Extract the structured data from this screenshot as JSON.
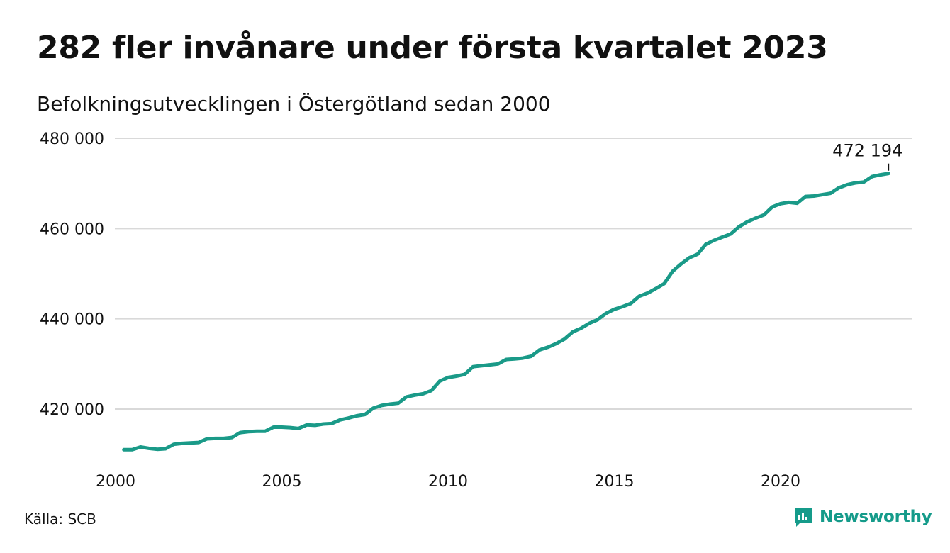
{
  "title": "282 fler invånare under första kvartalet 2023",
  "subtitle": "Befolkningsutvecklingen i Östergötland sedan 2000",
  "source": "Källa: SCB",
  "brand": {
    "name": "Newsworthy",
    "icon": "newsworthy-logo-icon",
    "color": "#159b8a"
  },
  "chart_data": {
    "type": "line",
    "color": "#1a9a88",
    "grid": true,
    "xlim": [
      2000,
      2023.25
    ],
    "ylim": [
      409000,
      480000
    ],
    "x_ticks": [
      {
        "value": 2000,
        "label": "2000"
      },
      {
        "value": 2005,
        "label": "2005"
      },
      {
        "value": 2010,
        "label": "2010"
      },
      {
        "value": 2015,
        "label": "2015"
      },
      {
        "value": 2020,
        "label": "2020"
      }
    ],
    "y_ticks": [
      {
        "value": 420000,
        "label": "420 000"
      },
      {
        "value": 440000,
        "label": "440 000"
      },
      {
        "value": 460000,
        "label": "460 000"
      },
      {
        "value": 480000,
        "label": "480 000"
      }
    ],
    "series": [
      {
        "x": [
          2000.25,
          2000.5,
          2000.75,
          2001,
          2001.25,
          2001.5,
          2001.75,
          2002,
          2002.25,
          2002.5,
          2002.75,
          2003,
          2003.25,
          2003.5,
          2003.75,
          2004,
          2004.25,
          2004.5,
          2004.75,
          2005,
          2005.25,
          2005.5,
          2005.75,
          2006,
          2006.25,
          2006.5,
          2006.75,
          2007,
          2007.25,
          2007.5,
          2007.75,
          2008,
          2008.25,
          2008.5,
          2008.75,
          2009,
          2009.25,
          2009.5,
          2009.75,
          2010,
          2010.25,
          2010.5,
          2010.75,
          2011,
          2011.25,
          2011.5,
          2011.75,
          2012,
          2012.25,
          2012.5,
          2012.75,
          2013,
          2013.25,
          2013.5,
          2013.75,
          2014,
          2014.25,
          2014.5,
          2014.75,
          2015,
          2015.25,
          2015.5,
          2015.75,
          2016,
          2016.25,
          2016.5,
          2016.75,
          2017,
          2017.25,
          2017.5,
          2017.75,
          2018,
          2018.25,
          2018.5,
          2018.75,
          2019,
          2019.25,
          2019.5,
          2019.75,
          2020,
          2020.25,
          2020.5,
          2020.75,
          2021,
          2021.25,
          2021.5,
          2021.75,
          2022,
          2022.25,
          2022.5,
          2022.75,
          2023,
          2023.25
        ],
        "values": [
          411000,
          411000,
          411600,
          411300,
          411100,
          411200,
          412200,
          412400,
          412500,
          412600,
          413400,
          413500,
          413500,
          413700,
          414800,
          415000,
          415100,
          415100,
          416000,
          416000,
          415900,
          415700,
          416500,
          416400,
          416700,
          416800,
          417600,
          418000,
          418500,
          418800,
          420200,
          420800,
          421100,
          421300,
          422700,
          423100,
          423400,
          424100,
          426200,
          427000,
          427300,
          427700,
          429400,
          429600,
          429800,
          430000,
          431000,
          431100,
          431300,
          431700,
          433100,
          433700,
          434500,
          435500,
          437100,
          437900,
          439000,
          439800,
          441200,
          442100,
          442700,
          443400,
          445000,
          445700,
          446700,
          447800,
          450500,
          452100,
          453500,
          454300,
          456500,
          457400,
          458100,
          458800,
          460400,
          461500,
          462300,
          463000,
          464800,
          465500,
          465800,
          465600,
          467100,
          467200,
          467500,
          467800,
          469000,
          469700,
          470100,
          470300,
          471500,
          471900,
          472194
        ]
      }
    ],
    "annotation": {
      "label": "472 194",
      "x": 2023.25,
      "y": 472194
    }
  }
}
